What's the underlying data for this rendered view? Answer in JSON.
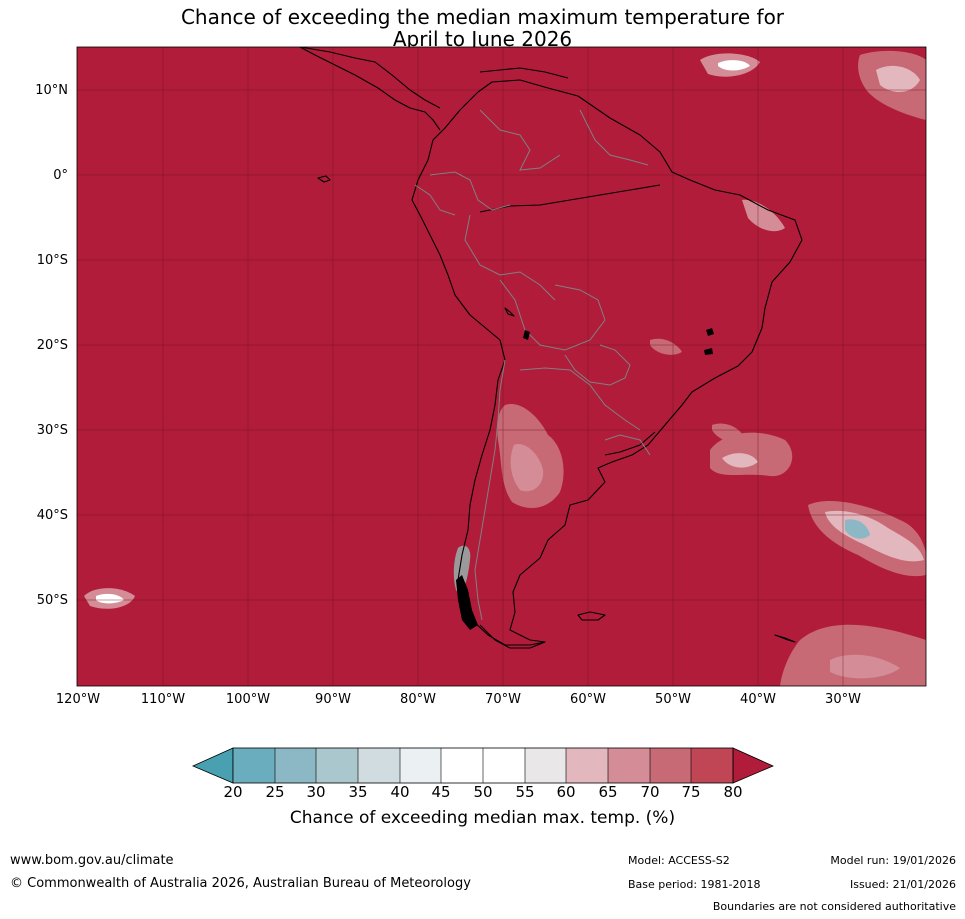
{
  "title_line1": "Chance of exceeding the median maximum temperature for",
  "title_line2": "April to June 2026",
  "map": {
    "dominant_color": "#b01c3a",
    "lat_labels": [
      "10°N",
      "0°",
      "10°S",
      "20°S",
      "30°S",
      "40°S",
      "50°S"
    ],
    "lon_labels": [
      "120°W",
      "110°W",
      "100°W",
      "90°W",
      "80°W",
      "70°W",
      "60°W",
      "50°W",
      "40°W",
      "30°W"
    ],
    "coastline_color": "#000000",
    "border_color": "#808080"
  },
  "colorbar": {
    "ticks": [
      "20",
      "25",
      "30",
      "35",
      "40",
      "45",
      "50",
      "55",
      "60",
      "65",
      "70",
      "75",
      "80"
    ],
    "colors": [
      "#48a0b0",
      "#6aadbe",
      "#8bb8c4",
      "#a9c7cc",
      "#d0dcdf",
      "#ebf1f3",
      "#ffffff",
      "#ffffff",
      "#e9e7e8",
      "#e2b7bd",
      "#d48c96",
      "#c86a75",
      "#c04555",
      "#b01c3a"
    ],
    "label": "Chance of exceeding median max. temp. (%)"
  },
  "footer": {
    "website": "www.bom.gov.au/climate",
    "copyright": "© Commonwealth of Australia 2026, Australian Bureau of Meteorology",
    "model": "Model: ACCESS-S2",
    "base_period": "Base period: 1981-2018",
    "model_run": "Model run: 19/01/2026",
    "issued": "Issued: 21/01/2026",
    "disclaimer": "Boundaries are not considered authoritative"
  }
}
